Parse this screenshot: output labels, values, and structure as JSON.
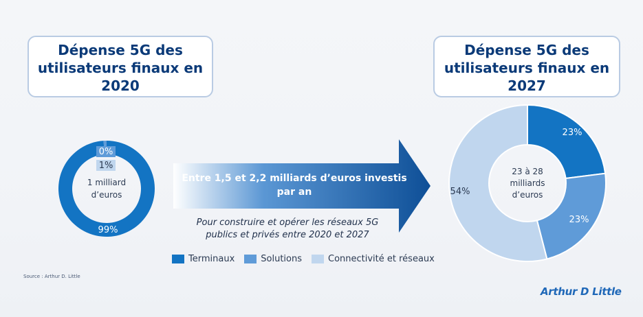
{
  "left_title": [
    "Dépense 5G des",
    "utilisateurs finaux en",
    "2020"
  ],
  "right_title": [
    "Dépense 5G des",
    "utilisateurs finaux en",
    "2027"
  ],
  "arrow_text": [
    "Entre 1,5 et 2,2 milliards d’euros investis",
    "par an"
  ],
  "subcaption": [
    "Pour construire et opérer les réseaux 5G",
    "publics et privés entre 2020 et 2027"
  ],
  "source": "Source : Arthur D. Little",
  "logo": "Arthur D Little",
  "colors": {
    "terminaux": "#1374c3",
    "solutions": "#5f9bd8",
    "connectivite": "#c0d6ee",
    "title_text": "#0b3a78",
    "arrow_dark": "#0e4f97"
  },
  "legend": [
    "Terminaux",
    "Solutions",
    "Connectivité et réseaux"
  ],
  "chart_data": [
    {
      "type": "pie",
      "donut": true,
      "title": "Dépense 5G des utilisateurs finaux en 2020",
      "center_label": [
        "1 milliard",
        "d’euros"
      ],
      "categories": [
        "Terminaux",
        "Solutions",
        "Connectivité et réseaux"
      ],
      "values": [
        99,
        1,
        0
      ],
      "data_labels": [
        "99%",
        "1%",
        "0%"
      ]
    },
    {
      "type": "pie",
      "donut": true,
      "title": "Dépense 5G des utilisateurs finaux en 2027",
      "center_label": [
        "23 à 28",
        "milliards",
        "d’euros"
      ],
      "categories": [
        "Terminaux",
        "Solutions",
        "Connectivité et réseaux"
      ],
      "values": [
        23,
        23,
        54
      ],
      "data_labels": [
        "23%",
        "23%",
        "54%"
      ]
    }
  ]
}
